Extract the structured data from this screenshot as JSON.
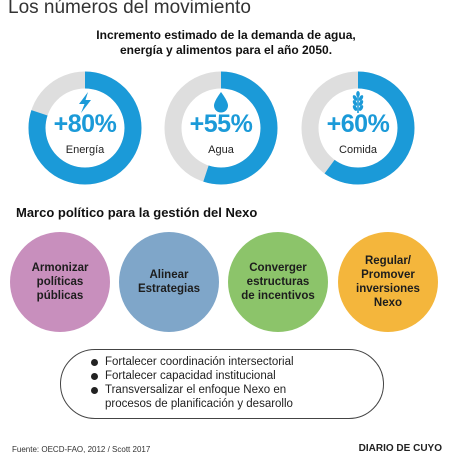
{
  "title": "Los números del movimiento",
  "subtitle": [
    "Incremento estimado de la demanda de agua,",
    "energía y alimentos para el año 2050."
  ],
  "colors": {
    "accent": "#1b9ad8",
    "track": "#dedede"
  },
  "stats": [
    {
      "icon": "lightning-icon",
      "value": "+80%",
      "fraction": 0.8,
      "label": "Energía"
    },
    {
      "icon": "water-drop-icon",
      "value": "+55%",
      "fraction": 0.55,
      "label": "Agua"
    },
    {
      "icon": "wheat-icon",
      "value": "+60%",
      "fraction": 0.6,
      "label": "Comida"
    }
  ],
  "section_heading": "Marco político para la gestión del Nexo",
  "policies": [
    {
      "label": "Armonizar\npolíticas\npúblicas",
      "color": "#c88fbd"
    },
    {
      "label": "Alinear\nEstrategias",
      "color": "#7fa6c9"
    },
    {
      "label": "Converger\nestructuras\nde incentivos",
      "color": "#8cc46a"
    },
    {
      "label": "Regular/\nPromover\ninversiones\nNexo",
      "color": "#f4b63c"
    }
  ],
  "bullets": [
    "Fortalecer coordinación intersectorial",
    "Fortalecer capacidad institucional",
    "Transversalizar el enfoque Nexo en\nprocesos de planificación y desarollo"
  ],
  "source": "Fuente: OECD-FAO, 2012 / Scott 2017",
  "brand": "DIARIO DE CUYO"
}
